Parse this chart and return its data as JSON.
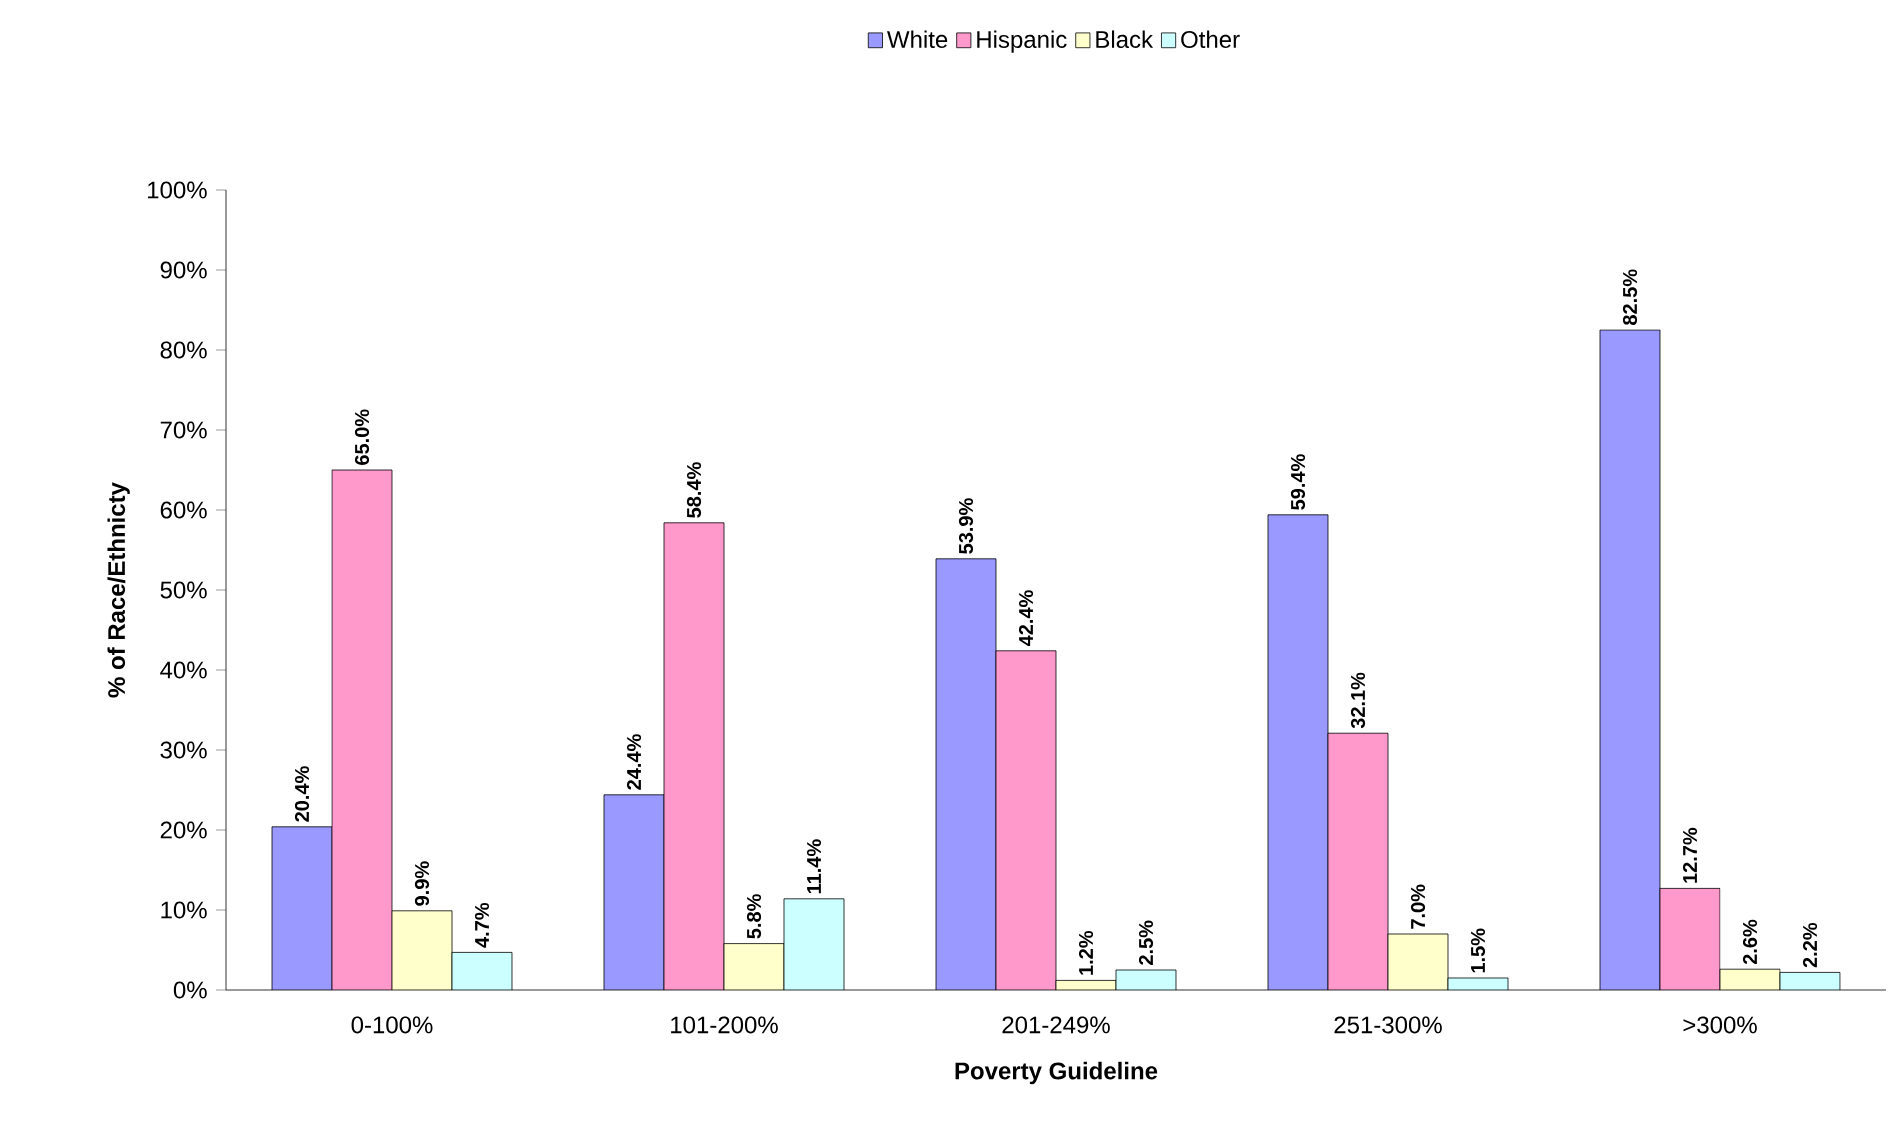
{
  "chart_data": {
    "type": "bar",
    "xlabel": "Poverty Guideline",
    "ylabel": "% of Race/Ethnicty",
    "categories": [
      "0-100%",
      "101-200%",
      "201-249%",
      "251-300%",
      ">300%"
    ],
    "series": [
      {
        "name": "White",
        "color": "#9999ff",
        "values": [
          20.4,
          24.4,
          53.9,
          59.4,
          82.5
        ],
        "value_labels": [
          "20.4%",
          "24.4%",
          "53.9%",
          "59.4%",
          "82.5%"
        ]
      },
      {
        "name": "Hispanic",
        "color": "#ff99cc",
        "values": [
          65.0,
          58.4,
          42.4,
          32.1,
          12.7
        ],
        "value_labels": [
          "65.0%",
          "58.4%",
          "42.4%",
          "32.1%",
          "12.7%"
        ]
      },
      {
        "name": "Black",
        "color": "#ffffcc",
        "values": [
          9.9,
          5.8,
          1.2,
          7.0,
          2.6
        ],
        "value_labels": [
          "9.9%",
          "5.8%",
          "1.2%",
          "7.0%",
          "2.6%"
        ]
      },
      {
        "name": "Other",
        "color": "#ccffff",
        "values": [
          4.7,
          11.4,
          2.5,
          1.5,
          2.2
        ],
        "value_labels": [
          "4.7%",
          "11.4%",
          "2.5%",
          "1.5%",
          "2.2%"
        ]
      }
    ],
    "ylim": [
      0,
      100
    ],
    "yticks": [
      {
        "value": 0,
        "label": "0%"
      },
      {
        "value": 10,
        "label": "10%"
      },
      {
        "value": 20,
        "label": "20%"
      },
      {
        "value": 30,
        "label": "30%"
      },
      {
        "value": 40,
        "label": "40%"
      },
      {
        "value": 50,
        "label": "50%"
      },
      {
        "value": 60,
        "label": "60%"
      },
      {
        "value": 70,
        "label": "70%"
      },
      {
        "value": 80,
        "label": "80%"
      },
      {
        "value": 90,
        "label": "90%"
      },
      {
        "value": 100,
        "label": "100%"
      }
    ],
    "legend": "top",
    "grid": false
  }
}
